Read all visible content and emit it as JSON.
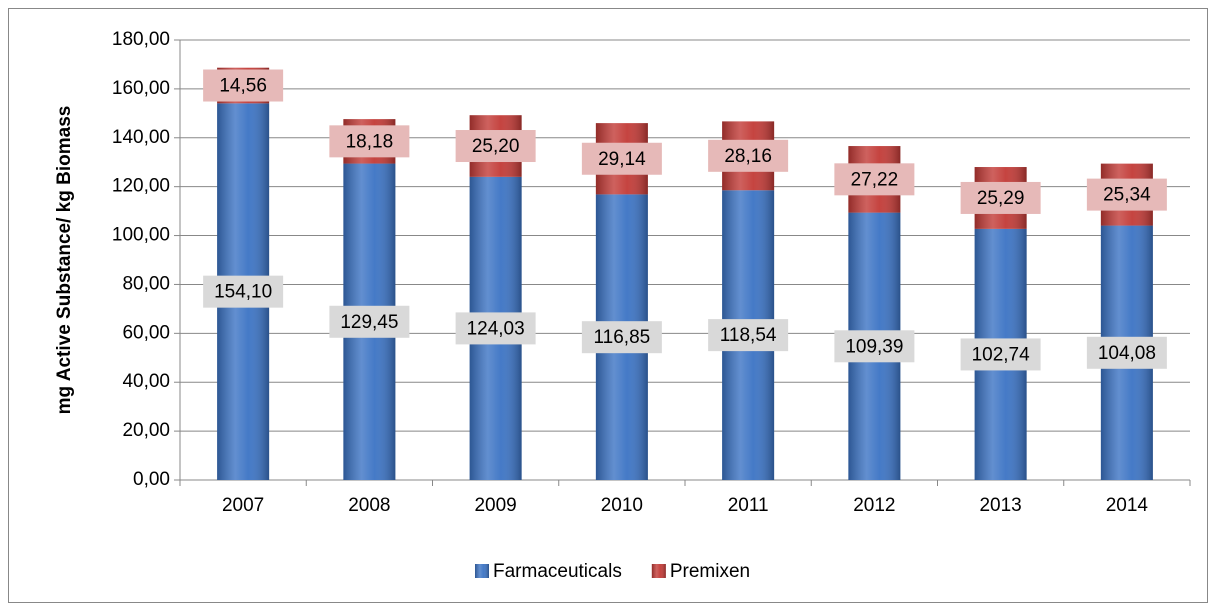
{
  "chart_data": {
    "type": "stacked_bar",
    "ylabel": "mg Active Substance/ kg Biomass",
    "categories": [
      "2007",
      "2008",
      "2009",
      "2010",
      "2011",
      "2012",
      "2013",
      "2014"
    ],
    "series": [
      {
        "name": "Farmaceuticals",
        "color": "#3b73c4",
        "values": [
          154.1,
          129.45,
          124.03,
          116.85,
          118.54,
          109.39,
          102.74,
          104.08
        ],
        "value_labels": [
          "154,10",
          "129,45",
          "124,03",
          "116,85",
          "118,54",
          "109,39",
          "102,74",
          "104,08"
        ]
      },
      {
        "name": "Premixen",
        "color": "#c23a36",
        "values": [
          14.56,
          18.18,
          25.2,
          29.14,
          28.16,
          27.22,
          25.29,
          25.34
        ],
        "value_labels": [
          "14,56",
          "18,18",
          "25,20",
          "29,14",
          "28,16",
          "27,22",
          "25,29",
          "25,34"
        ]
      }
    ],
    "ylim": [
      0,
      180
    ],
    "yticks": [
      {
        "value": 0,
        "label": "0,00"
      },
      {
        "value": 20,
        "label": "20,00"
      },
      {
        "value": 40,
        "label": "40,00"
      },
      {
        "value": 60,
        "label": "60,00"
      },
      {
        "value": 80,
        "label": "80,00"
      },
      {
        "value": 100,
        "label": "100,00"
      },
      {
        "value": 120,
        "label": "120,00"
      },
      {
        "value": 140,
        "label": "140,00"
      },
      {
        "value": 160,
        "label": "160,00"
      },
      {
        "value": 180,
        "label": "180,00"
      }
    ],
    "grid": true,
    "legend": "bottom"
  }
}
